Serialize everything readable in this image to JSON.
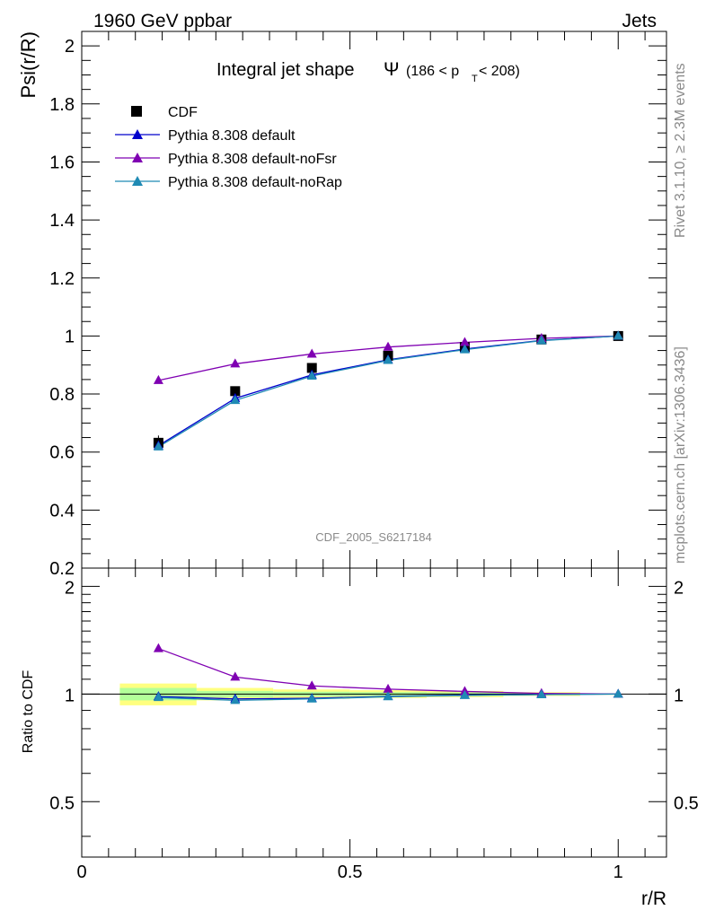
{
  "header": {
    "left": "1960 GeV ppbar",
    "right": "Jets"
  },
  "side_texts": {
    "rivet": "Rivet 3.1.10, ≥ 2.3M events",
    "mcplots": "mcplots.cern.ch [arXiv:1306.3436]"
  },
  "watermark": "CDF_2005_S6217184",
  "chart_data": [
    {
      "type": "line",
      "title": "Integral jet shape",
      "title_symbol": "Ψ",
      "title_range": {
        "pre": "(186 < p",
        "sub": "T",
        "post": " < 208)"
      },
      "ylabel": "Psi(r/R)",
      "xlim": [
        0,
        1.09
      ],
      "ylim": [
        0.2,
        2.05
      ],
      "yticks": [
        0.2,
        0.4,
        0.6,
        0.8,
        1,
        1.2,
        1.4,
        1.6,
        1.8,
        2
      ],
      "ytick_labels": [
        "0.2",
        "0.4",
        "0.6",
        "0.8",
        "1",
        "1.2",
        "1.4",
        "1.6",
        "1.8",
        "2"
      ],
      "legend_position": "top-left",
      "x": [
        0.143,
        0.286,
        0.429,
        0.571,
        0.714,
        0.857,
        1.0
      ],
      "series": [
        {
          "name": "CDF",
          "kind": "data",
          "color": "#000000",
          "marker": "square",
          "values": [
            0.632,
            0.81,
            0.89,
            0.932,
            0.962,
            0.988,
            1.0
          ],
          "err": [
            0.025,
            0.015,
            0.01,
            0.008,
            0.006,
            0.004,
            0.0
          ]
        },
        {
          "name": "Pythia 8.308 default",
          "kind": "mc",
          "color": "#0000cc",
          "marker": "triangle",
          "values": [
            0.622,
            0.785,
            0.866,
            0.918,
            0.955,
            0.985,
            1.0
          ]
        },
        {
          "name": "Pythia 8.308 default-noFsr",
          "kind": "mc",
          "color": "#7f00b2",
          "marker": "triangle",
          "values": [
            0.847,
            0.904,
            0.938,
            0.962,
            0.978,
            0.992,
            1.0
          ]
        },
        {
          "name": "Pythia 8.308 default-noRap",
          "kind": "mc",
          "color": "#1f8ab4",
          "marker": "triangle",
          "values": [
            0.618,
            0.778,
            0.862,
            0.916,
            0.953,
            0.984,
            1.0
          ]
        }
      ]
    },
    {
      "type": "line",
      "title": "",
      "ylabel": "Ratio to CDF",
      "xlabel": "r/R",
      "xlim": [
        0,
        1.09
      ],
      "ylim": [
        0.35,
        2.25
      ],
      "yticks": [
        0.5,
        1,
        2
      ],
      "ytick_labels": [
        "0.5",
        "1",
        "2"
      ],
      "xticks": [
        0,
        0.5,
        1
      ],
      "xtick_labels": [
        "0",
        "0.5",
        "1"
      ],
      "x": [
        0.143,
        0.286,
        0.429,
        0.571,
        0.714,
        0.857,
        1.0
      ],
      "band": {
        "x0": [
          0.071,
          0.214,
          0.357,
          0.5,
          0.643,
          0.786,
          0.929
        ],
        "x1": [
          0.214,
          0.357,
          0.5,
          0.643,
          0.786,
          0.929,
          1.0
        ],
        "outer": [
          0.07,
          0.04,
          0.03,
          0.025,
          0.02,
          0.012,
          0.005
        ],
        "inner": [
          0.04,
          0.02,
          0.015,
          0.012,
          0.01,
          0.006,
          0.003
        ],
        "outer_color": "#ffff80",
        "inner_color": "#b3ff99"
      },
      "series": [
        {
          "name": "Pythia 8.308 default",
          "color": "#0000cc",
          "values": [
            0.984,
            0.969,
            0.973,
            0.985,
            0.993,
            0.997,
            1.0
          ]
        },
        {
          "name": "Pythia 8.308 default-noFsr",
          "color": "#7f00b2",
          "values": [
            1.34,
            1.116,
            1.054,
            1.032,
            1.017,
            1.004,
            1.0
          ]
        },
        {
          "name": "Pythia 8.308 default-noRap",
          "color": "#1f8ab4",
          "values": [
            0.978,
            0.96,
            0.969,
            0.983,
            0.991,
            0.996,
            1.0
          ]
        }
      ]
    }
  ]
}
